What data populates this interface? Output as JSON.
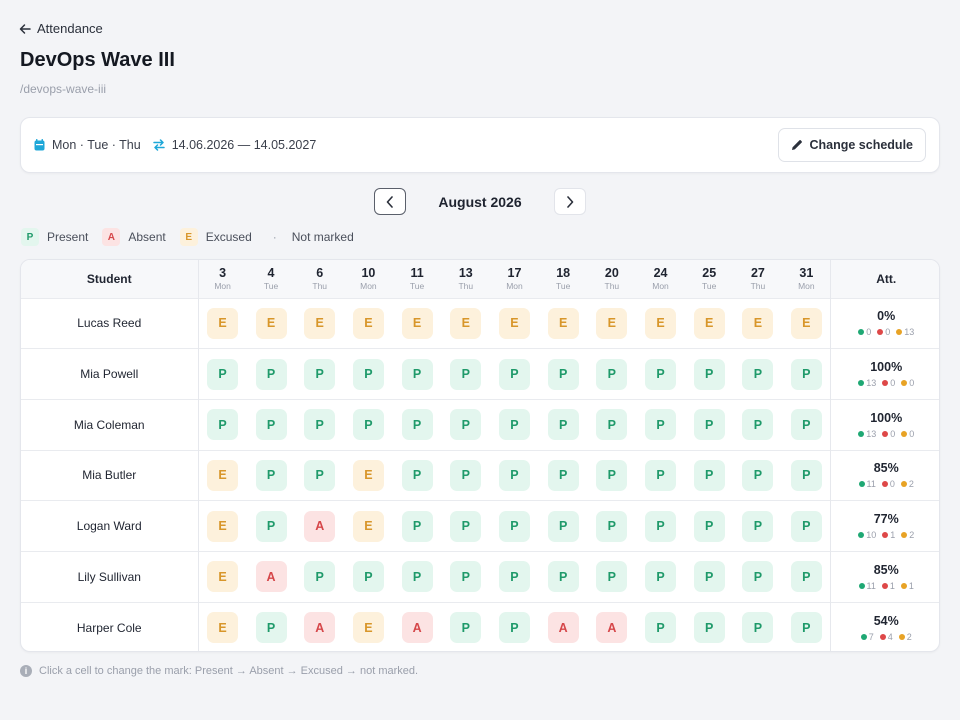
{
  "breadcrumb": {
    "back_label": "Attendance"
  },
  "page": {
    "title": "DevOps Wave III",
    "slug": "/devops-wave-iii"
  },
  "schedule": {
    "days": "Mon · Tue · Thu",
    "range": "14.06.2026 — 14.05.2027",
    "change_label": "Change schedule"
  },
  "month": {
    "label": "August 2026"
  },
  "legend": {
    "present_chip": "P",
    "present_label": "Present",
    "absent_chip": "A",
    "absent_label": "Absent",
    "excused_chip": "E",
    "excused_label": "Excused",
    "unmarked_chip": "·",
    "unmarked_label": "Not marked"
  },
  "colors": {
    "present": "#1f9a6a",
    "absent": "#d6474a",
    "excused": "#d8962a",
    "present_bg": "#e3f6ee",
    "absent_bg": "#fce3e3",
    "excused_bg": "#fdf1dc"
  },
  "table": {
    "student_header": "Student",
    "att_header": "Att.",
    "dates": [
      {
        "day": "3",
        "weekday": "Mon"
      },
      {
        "day": "4",
        "weekday": "Tue"
      },
      {
        "day": "6",
        "weekday": "Thu"
      },
      {
        "day": "10",
        "weekday": "Mon"
      },
      {
        "day": "11",
        "weekday": "Tue"
      },
      {
        "day": "13",
        "weekday": "Thu"
      },
      {
        "day": "17",
        "weekday": "Mon"
      },
      {
        "day": "18",
        "weekday": "Tue"
      },
      {
        "day": "20",
        "weekday": "Thu"
      },
      {
        "day": "24",
        "weekday": "Mon"
      },
      {
        "day": "25",
        "weekday": "Tue"
      },
      {
        "day": "27",
        "weekday": "Thu"
      },
      {
        "day": "31",
        "weekday": "Mon"
      }
    ],
    "rows": [
      {
        "name": "Lucas Reed",
        "marks": [
          "E",
          "E",
          "E",
          "E",
          "E",
          "E",
          "E",
          "E",
          "E",
          "E",
          "E",
          "E",
          "E"
        ],
        "pct": "0%",
        "present": "0",
        "absent": "0",
        "excused": "13"
      },
      {
        "name": "Mia Powell",
        "marks": [
          "P",
          "P",
          "P",
          "P",
          "P",
          "P",
          "P",
          "P",
          "P",
          "P",
          "P",
          "P",
          "P"
        ],
        "pct": "100%",
        "present": "13",
        "absent": "0",
        "excused": "0"
      },
      {
        "name": "Mia Coleman",
        "marks": [
          "P",
          "P",
          "P",
          "P",
          "P",
          "P",
          "P",
          "P",
          "P",
          "P",
          "P",
          "P",
          "P"
        ],
        "pct": "100%",
        "present": "13",
        "absent": "0",
        "excused": "0"
      },
      {
        "name": "Mia Butler",
        "marks": [
          "E",
          "P",
          "P",
          "E",
          "P",
          "P",
          "P",
          "P",
          "P",
          "P",
          "P",
          "P",
          "P"
        ],
        "pct": "85%",
        "present": "11",
        "absent": "0",
        "excused": "2"
      },
      {
        "name": "Logan Ward",
        "marks": [
          "E",
          "P",
          "A",
          "E",
          "P",
          "P",
          "P",
          "P",
          "P",
          "P",
          "P",
          "P",
          "P"
        ],
        "pct": "77%",
        "present": "10",
        "absent": "1",
        "excused": "2"
      },
      {
        "name": "Lily Sullivan",
        "marks": [
          "E",
          "A",
          "P",
          "P",
          "P",
          "P",
          "P",
          "P",
          "P",
          "P",
          "P",
          "P",
          "P"
        ],
        "pct": "85%",
        "present": "11",
        "absent": "1",
        "excused": "1"
      },
      {
        "name": "Harper Cole",
        "marks": [
          "E",
          "P",
          "A",
          "E",
          "A",
          "P",
          "P",
          "A",
          "A",
          "P",
          "P",
          "P",
          "P"
        ],
        "pct": "54%",
        "present": "7",
        "absent": "4",
        "excused": "2"
      }
    ]
  },
  "hint": {
    "text": "Click a cell to change the mark: Present → Absent → Excused → not marked."
  }
}
